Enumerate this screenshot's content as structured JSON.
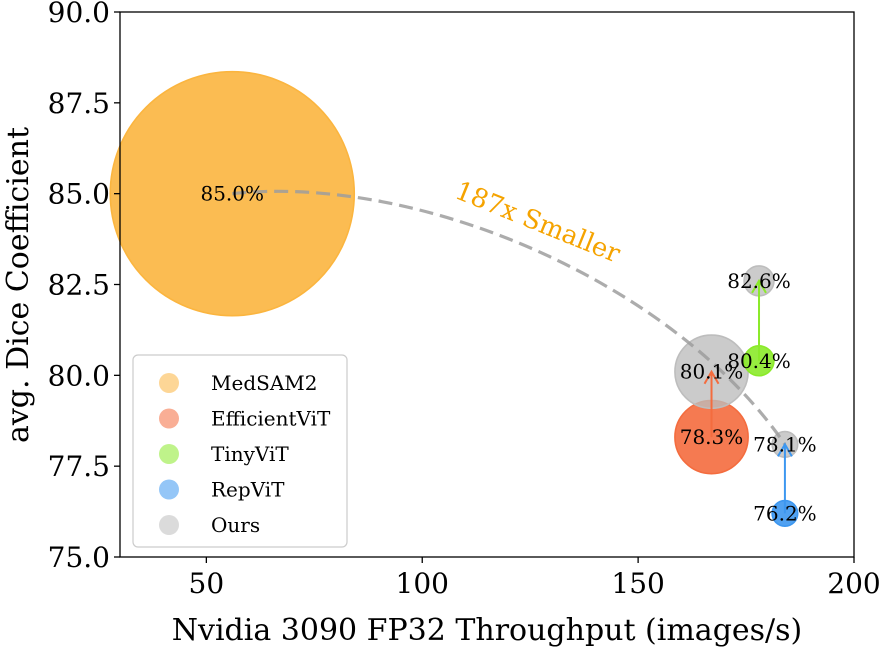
{
  "chart_data": {
    "type": "scatter",
    "xlabel": "Nvidia 3090 FP32 Throughput (images/s)",
    "ylabel": "avg. Dice Coefficient",
    "xlim": [
      30,
      200
    ],
    "ylim": [
      75.0,
      90.0
    ],
    "xticks": [
      50,
      100,
      150,
      200
    ],
    "xtick_labels": [
      "50",
      "100",
      "150",
      "200"
    ],
    "yticks": [
      75.0,
      77.5,
      80.0,
      82.5,
      85.0,
      87.5,
      90.0
    ],
    "ytick_labels": [
      "75.0",
      "77.5",
      "80.0",
      "82.5",
      "85.0",
      "87.5",
      "90.0"
    ],
    "grid": false,
    "legend_position": "lower-left",
    "colors": {
      "MedSAM2": "#FBB53F",
      "EfficientViT": "#F46C3E",
      "TinyViT": "#8BEA2A",
      "RepViT": "#3D97F0",
      "Ours": "#BDBDBD",
      "annotation": "#F5A300",
      "trend": "#9E9E9E"
    },
    "series": [
      {
        "name": "MedSAM2",
        "points": [
          {
            "x": 56,
            "y": 85.0,
            "size": 100,
            "label": "85.0%"
          }
        ]
      },
      {
        "name": "EfficientViT",
        "points": [
          {
            "x": 167,
            "y": 78.3,
            "size": 9,
            "label": "78.3%"
          }
        ]
      },
      {
        "name": "TinyViT",
        "points": [
          {
            "x": 178,
            "y": 80.4,
            "size": 1.5,
            "label": "80.4%"
          }
        ]
      },
      {
        "name": "RepViT",
        "points": [
          {
            "x": 184,
            "y": 76.2,
            "size": 1.1,
            "label": "76.2%"
          }
        ]
      },
      {
        "name": "Ours",
        "points": [
          {
            "x": 167,
            "y": 80.1,
            "size": 9,
            "label": "80.1%"
          },
          {
            "x": 178,
            "y": 82.6,
            "size": 1.5,
            "label": "82.6%"
          },
          {
            "x": 184,
            "y": 78.1,
            "size": 1.1,
            "label": "78.1%"
          }
        ]
      }
    ],
    "arrows": [
      {
        "series": "EfficientViT",
        "from": {
          "x": 167,
          "y": 78.3
        },
        "to": {
          "x": 167,
          "y": 80.1
        }
      },
      {
        "series": "TinyViT",
        "from": {
          "x": 178,
          "y": 80.4
        },
        "to": {
          "x": 178,
          "y": 82.6
        }
      },
      {
        "series": "RepViT",
        "from": {
          "x": 184,
          "y": 76.2
        },
        "to": {
          "x": 184,
          "y": 78.1
        }
      }
    ],
    "trend_line": {
      "from": {
        "x": 56,
        "y": 85.0
      },
      "to": {
        "x": 184,
        "y": 78.1
      }
    },
    "annotation": {
      "text": "187x Smaller",
      "x": 126,
      "y": 84.0
    },
    "legend": [
      "MedSAM2",
      "EfficientViT",
      "TinyViT",
      "RepViT",
      "Ours"
    ]
  }
}
